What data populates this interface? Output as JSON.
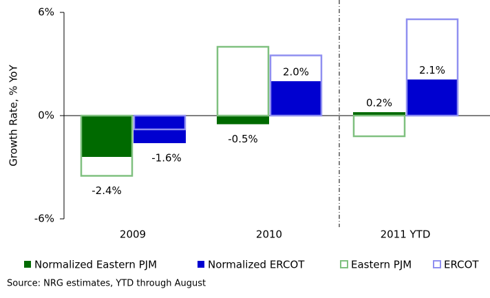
{
  "chart_data": {
    "type": "bar",
    "y_label": "Growth Rate, % YoY",
    "source": "Source:  NRG estimates, YTD through August",
    "categories": [
      "2009",
      "2010",
      "2011 YTD"
    ],
    "ylim": [
      -6,
      6
    ],
    "yticks": [
      {
        "value": -6,
        "label": "-6%"
      },
      {
        "value": 0,
        "label": "0%"
      },
      {
        "value": 6,
        "label": "6%"
      }
    ],
    "series": [
      {
        "name": "Normalized Eastern PJM",
        "color": "#006a00",
        "filled": true,
        "values": [
          -2.4,
          -0.5,
          0.2
        ],
        "value_labels": [
          "-2.4%",
          "-0.5%",
          "0.2%"
        ]
      },
      {
        "name": "Normalized ERCOT",
        "color": "#0000d0",
        "filled": true,
        "values": [
          -1.6,
          2.0,
          2.1
        ],
        "value_labels": [
          "-1.6%",
          "2.0%",
          "2.1%"
        ]
      },
      {
        "name": "Eastern PJM",
        "color": "#7fc07f",
        "filled": false,
        "values": [
          -3.5,
          4.0,
          -1.2
        ]
      },
      {
        "name": "ERCOT",
        "color": "#8f8ff0",
        "filled": false,
        "values": [
          -0.8,
          3.5,
          5.6
        ]
      }
    ]
  }
}
